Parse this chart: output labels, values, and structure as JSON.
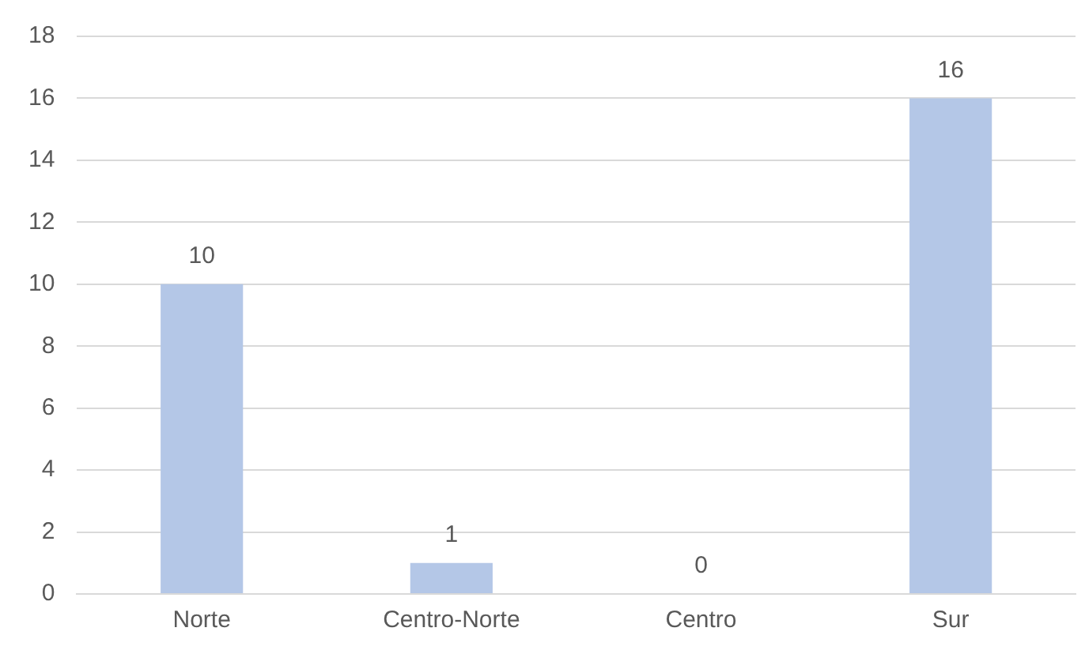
{
  "chart_data": {
    "type": "bar",
    "categories": [
      "Norte",
      "Centro-Norte",
      "Centro",
      "Sur"
    ],
    "values": [
      10,
      1,
      0,
      16
    ],
    "color": "#b4c7e7",
    "ylim": [
      0,
      18
    ],
    "yticks": [
      0,
      2,
      4,
      6,
      8,
      10,
      12,
      14,
      16,
      18
    ],
    "grid": "y",
    "data_labels": true,
    "legend": false
  }
}
